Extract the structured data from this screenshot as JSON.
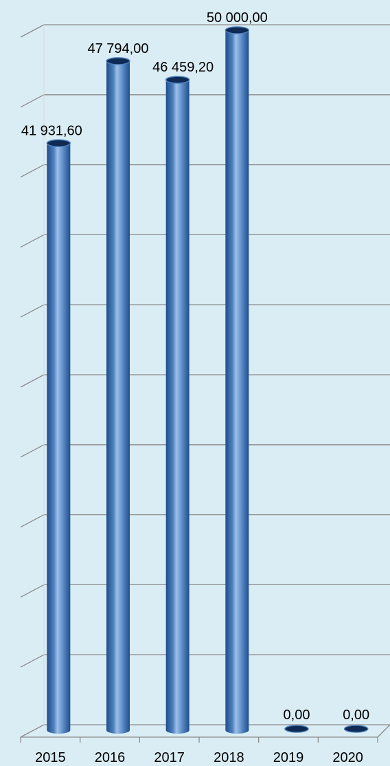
{
  "chart_data": {
    "type": "bar",
    "categories": [
      "2015",
      "2016",
      "2017",
      "2018",
      "2019",
      "2020"
    ],
    "values": [
      41931.6,
      47794.0,
      46459.2,
      50000.0,
      0.0,
      0.0
    ],
    "data_labels": [
      "41 931,60",
      "47 794,00",
      "46 459,20",
      "50 000,00",
      "0,00",
      "0,00"
    ],
    "title": "",
    "xlabel": "",
    "ylabel": "",
    "ylim": [
      0,
      50000
    ],
    "gridlines": 10,
    "grid": true,
    "legend": "none",
    "style": "3d-cylinder",
    "colors": {
      "background": "#daedf5",
      "bar": "#4f81bd",
      "bar_dark": "#1f4e8c",
      "bar_light": "#9dc0ea",
      "bar_top": "#0e2a55",
      "grid": "#8a8a8a",
      "wall_edge": "#d9d9d9"
    }
  }
}
